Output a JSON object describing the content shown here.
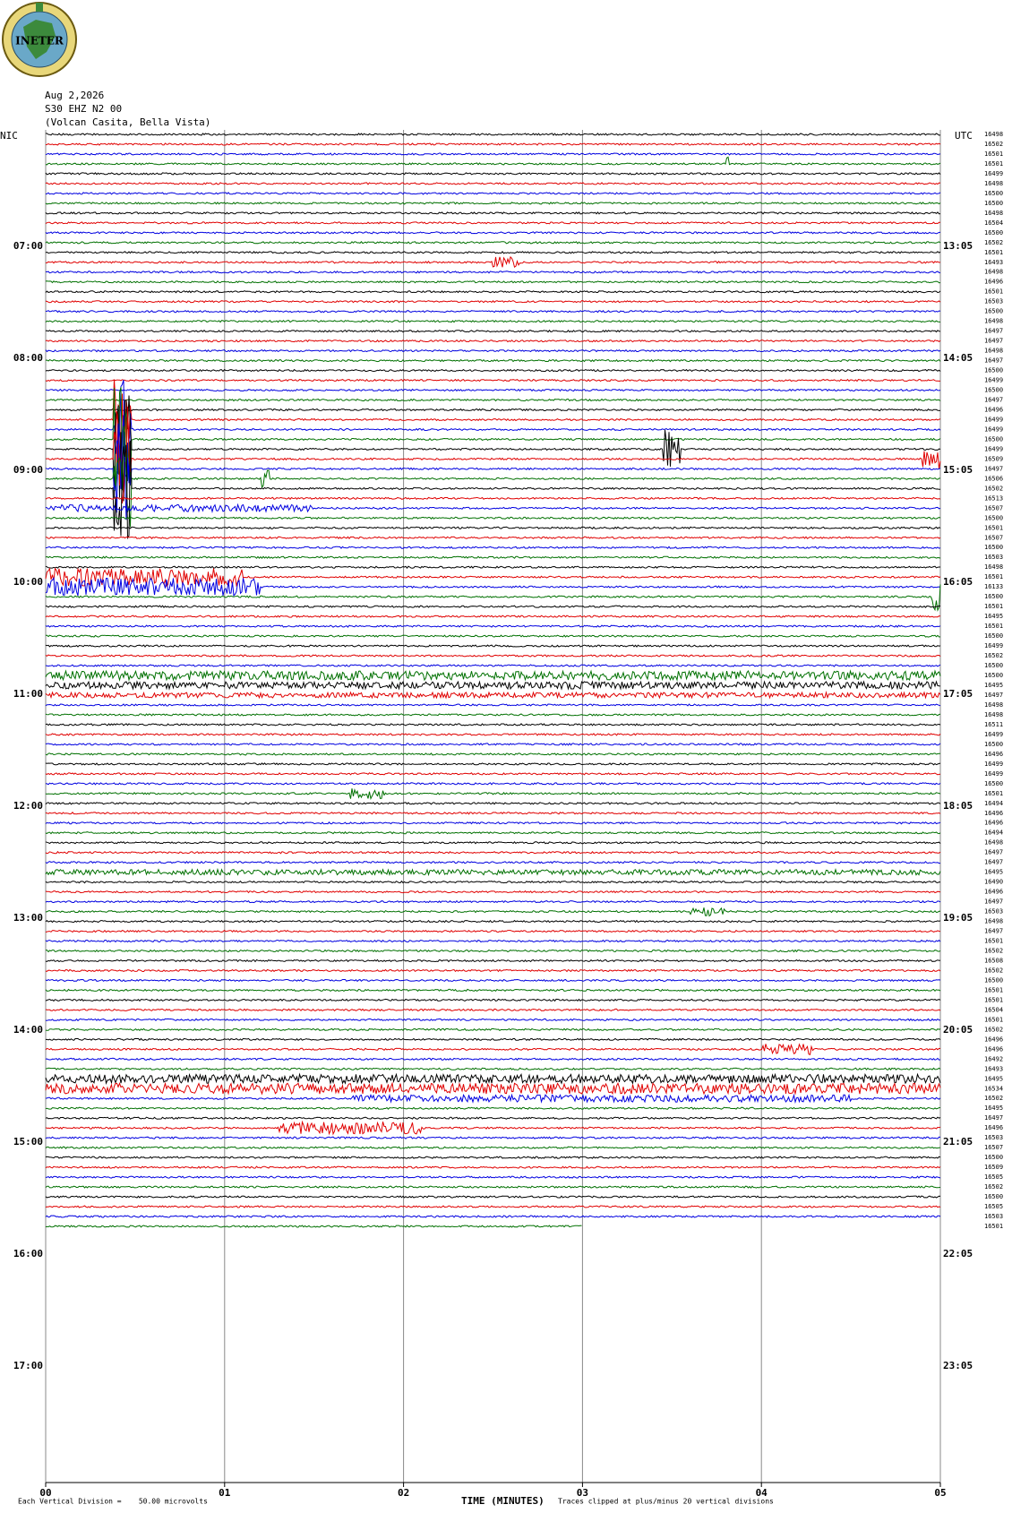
{
  "chart_data": {
    "type": "helicorder",
    "logo": "INETER",
    "date": "Aug 2,2026",
    "station": "S30 EHZ N2 00",
    "location": "(Volcan Casita, Bella Vista)",
    "left_zone": "NIC",
    "right_zone": "UTC",
    "local_hours": [
      "07:00",
      "08:00",
      "09:00",
      "10:00",
      "11:00",
      "12:00",
      "13:00",
      "14:00",
      "15:00",
      "16:00",
      "17:00"
    ],
    "utc_hours": [
      "13:05",
      "14:05",
      "15:05",
      "16:05",
      "17:05",
      "18:05",
      "19:05",
      "20:05",
      "21:05",
      "22:05",
      "23:05"
    ],
    "xlabel": "TIME (MINUTES)",
    "xlim": [
      0,
      5
    ],
    "xticks": [
      {
        "value": 0,
        "label": "00"
      },
      {
        "value": 1,
        "label": "01"
      },
      {
        "value": 2,
        "label": "02"
      },
      {
        "value": 3,
        "label": "03"
      },
      {
        "value": 4,
        "label": "04"
      },
      {
        "value": 5,
        "label": "05"
      }
    ],
    "trace_colors": [
      "#000000",
      "#e00000",
      "#0000e0",
      "#007000"
    ],
    "scale_note": "Each Vertical Division =    50.00 microvolts",
    "clip_note": "Traces clipped at plus/minus 20 vertical divisions",
    "trace_levels": [
      16498,
      16502,
      16501,
      16501,
      16499,
      16498,
      16500,
      16500,
      16498,
      16504,
      16500,
      16502,
      16501,
      16493,
      16498,
      16496,
      16501,
      16503,
      16500,
      16498,
      16497,
      16497,
      16498,
      16497,
      16500,
      16499,
      16500,
      16497,
      16496,
      16499,
      16499,
      16500,
      16499,
      16509,
      16497,
      16506,
      16502,
      16513,
      16507,
      16500,
      16501,
      16507,
      16500,
      16503,
      16498,
      16501,
      16133,
      16500,
      16501,
      16495,
      16501,
      16500,
      16499,
      16502,
      16500,
      16500,
      16495,
      16497,
      16498,
      16498,
      16511,
      16499,
      16500,
      16496,
      16499,
      16499,
      16500,
      16501,
      16494,
      16496,
      16496,
      16494,
      16498,
      16497,
      16497,
      16495,
      16490,
      16496,
      16497,
      16503,
      16498,
      16497,
      16501,
      16502,
      16508,
      16502,
      16500,
      16501,
      16501,
      16504,
      16501,
      16502,
      16496,
      16496,
      16492,
      16493,
      16495,
      16534,
      16502,
      16495,
      16497,
      16496,
      16503,
      16507,
      16500,
      16509,
      16505,
      16502,
      16500,
      16505,
      16503,
      16501
    ]
  }
}
